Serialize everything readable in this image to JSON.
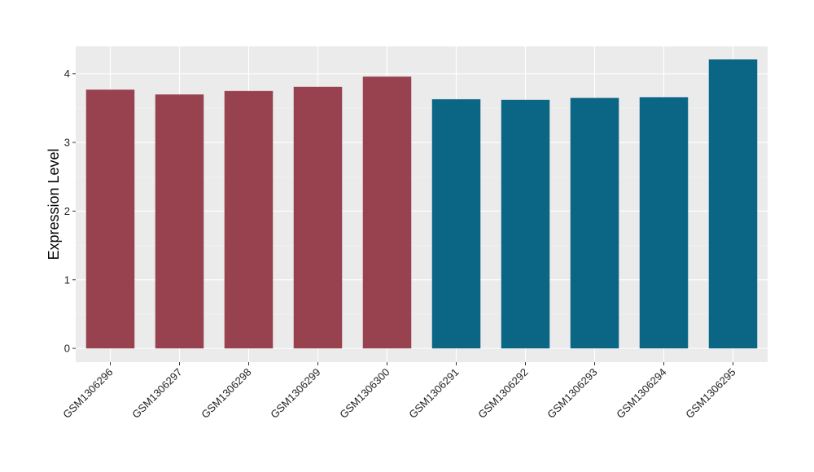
{
  "chart_data": {
    "type": "bar",
    "title": "",
    "xlabel": "",
    "ylabel": "Expression Level",
    "categories": [
      "GSM1306296",
      "GSM1306297",
      "GSM1306298",
      "GSM1306299",
      "GSM1306300",
      "GSM1306291",
      "GSM1306292",
      "GSM1306293",
      "GSM1306294",
      "GSM1306295"
    ],
    "values": [
      3.77,
      3.7,
      3.75,
      3.81,
      3.96,
      3.63,
      3.62,
      3.65,
      3.66,
      4.21
    ],
    "bar_colors": [
      "#99424f",
      "#99424f",
      "#99424f",
      "#99424f",
      "#99424f",
      "#0b6585",
      "#0b6585",
      "#0b6585",
      "#0b6585",
      "#0b6585"
    ],
    "yticks": [
      0,
      1,
      2,
      3,
      4
    ],
    "ylim": [
      -0.2,
      4.4
    ],
    "grid": true,
    "legend": "none",
    "panel_background": "#ebebeb"
  }
}
